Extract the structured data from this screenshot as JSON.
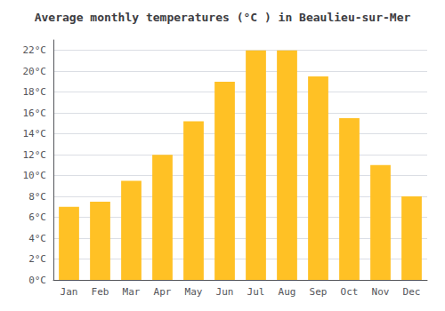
{
  "chart_data": {
    "type": "bar",
    "title": "Average monthly temperatures (°C ) in Beaulieu-sur-Mer",
    "categories": [
      "Jan",
      "Feb",
      "Mar",
      "Apr",
      "May",
      "Jun",
      "Jul",
      "Aug",
      "Sep",
      "Oct",
      "Nov",
      "Dec"
    ],
    "values": [
      7,
      7.5,
      9.5,
      12,
      15.2,
      19,
      22,
      22,
      19.5,
      15.5,
      11,
      8
    ],
    "color": "#FFC125",
    "ylim": [
      0,
      23
    ],
    "yticks": [
      {
        "value": 0,
        "label": "0°C"
      },
      {
        "value": 2,
        "label": "2°C"
      },
      {
        "value": 4,
        "label": "4°C"
      },
      {
        "value": 6,
        "label": "6°C"
      },
      {
        "value": 8,
        "label": "8°C"
      },
      {
        "value": 10,
        "label": "10°C"
      },
      {
        "value": 12,
        "label": "12°C"
      },
      {
        "value": 14,
        "label": "14°C"
      },
      {
        "value": 16,
        "label": "16°C"
      },
      {
        "value": 18,
        "label": "18°C"
      },
      {
        "value": 20,
        "label": "20°C"
      },
      {
        "value": 22,
        "label": "22°C"
      }
    ],
    "grid": true
  }
}
